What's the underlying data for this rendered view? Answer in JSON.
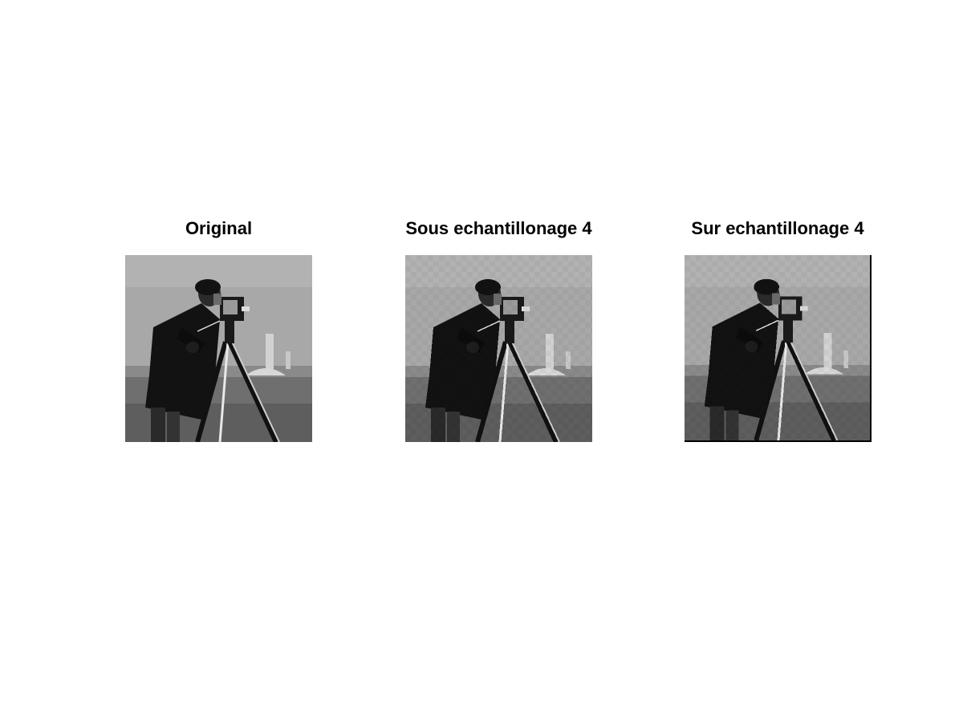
{
  "figure": {
    "panels": [
      {
        "title": "Original",
        "image": "cameraman-photo",
        "pixelation": "none"
      },
      {
        "title": "Sous echantillonage 4",
        "image": "cameraman-photo",
        "pixelation": "blocky"
      },
      {
        "title": "Sur echantillonage 4",
        "image": "cameraman-photo",
        "pixelation": "blocky"
      }
    ],
    "colors": {
      "background": "#ffffff",
      "sky": "#a8a8a8",
      "ground": "#6f6f6f",
      "subject": "#121212"
    }
  }
}
